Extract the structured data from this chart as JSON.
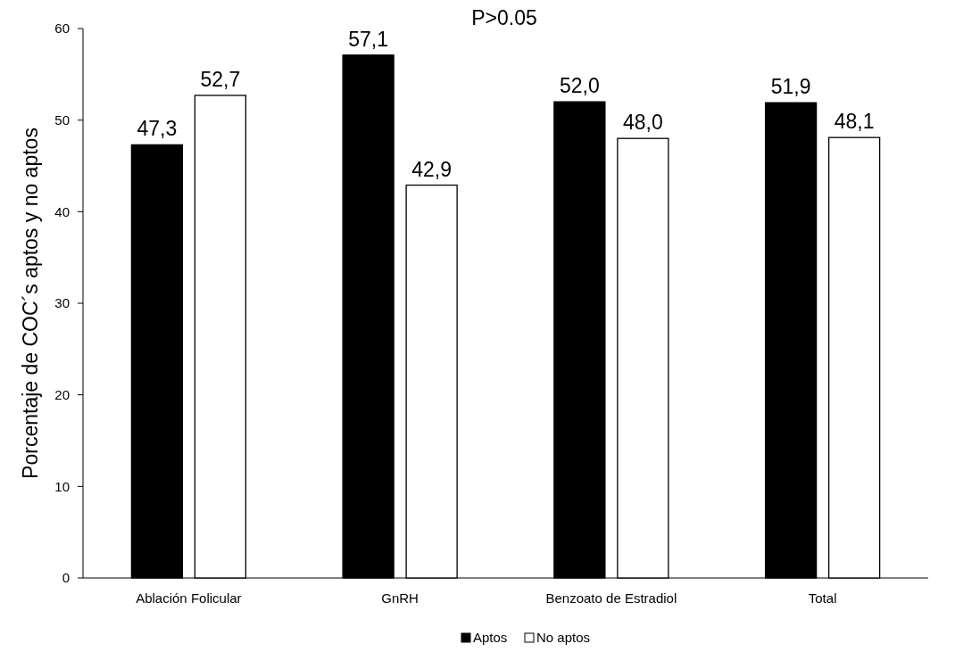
{
  "chart_data": {
    "type": "bar",
    "ylabel": "Porcentaje de COC´s aptos y no aptos",
    "categories": [
      "Ablación Folicular",
      "GnRH",
      "Benzoato de Estradiol",
      "Total"
    ],
    "series": [
      {
        "name": "Aptos",
        "color": "#000000",
        "values": [
          47.3,
          57.1,
          52.0,
          51.9
        ],
        "value_labels": [
          "47,3",
          "57,1",
          "52,0",
          "51,9"
        ]
      },
      {
        "name": "No aptos",
        "color": "#ffffff",
        "values": [
          52.7,
          42.9,
          48.0,
          48.1
        ],
        "value_labels": [
          "52,7",
          "42,9",
          "48,0",
          "48,1"
        ]
      }
    ],
    "ylim": [
      0,
      60
    ],
    "yticks": [
      0,
      10,
      20,
      30,
      40,
      50,
      60
    ],
    "grid": false,
    "legend": "bottom",
    "annotations": [
      "P>0.05"
    ]
  }
}
